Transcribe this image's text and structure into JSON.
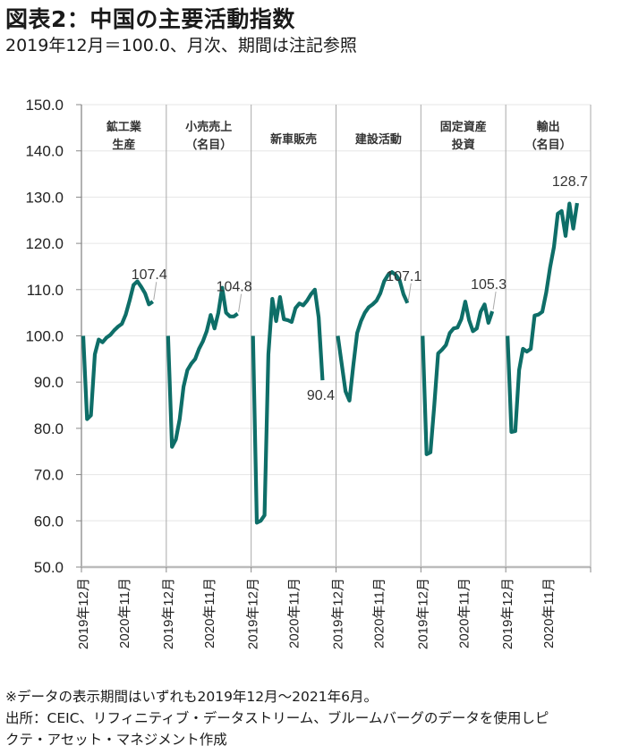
{
  "header": {
    "title": "図表2：中国の主要活動指数",
    "subtitle": "2019年12月＝100.0、月次、期間は注記参照"
  },
  "footnotes": {
    "note": "※データの表示期間はいずれも2019年12月～2021年6月。",
    "source_line1": "出所：CEIC、リフィニティブ・データストリーム、ブルームバーグのデータを使用しピ",
    "source_line2": "クテ・アセット・マネジメント作成"
  },
  "chart_data": {
    "type": "line",
    "title": "図表2：中国の主要活動指数",
    "subtitle": "2019年12月＝100.0、月次、期間は注記参照",
    "xlabel": "",
    "ylabel": "",
    "ylim": [
      50,
      150
    ],
    "yticks": [
      "50.0",
      "60.0",
      "70.0",
      "80.0",
      "90.0",
      "100.0",
      "110.0",
      "120.0",
      "130.0",
      "140.0",
      "150.0"
    ],
    "grid": true,
    "legend": "none",
    "line_color": "#0e6e68",
    "x": [
      "2019-12",
      "2020-01",
      "2020-02",
      "2020-03",
      "2020-04",
      "2020-05",
      "2020-06",
      "2020-07",
      "2020-08",
      "2020-09",
      "2020-10",
      "2020-11",
      "2020-12",
      "2021-01",
      "2021-02",
      "2021-03",
      "2021-04",
      "2021-05",
      "2021-06"
    ],
    "panels": [
      {
        "name": "鉱工業生産",
        "label_lines": [
          "鉱工業",
          "生産"
        ],
        "xtick_labels": [
          "2019年12月",
          "2020年11月"
        ],
        "values": [
          100.0,
          82.0,
          82.8,
          96.0,
          99.2,
          98.6,
          99.6,
          100.2,
          101.2,
          102.0,
          102.6,
          104.6,
          107.6,
          111.0,
          111.8,
          110.6,
          109.2,
          106.8,
          107.4
        ],
        "end_label": "107.4"
      },
      {
        "name": "小売売上（名目）",
        "label_lines": [
          "小売売上",
          "（名目）"
        ],
        "xtick_labels": [
          "2019年12月",
          "2020年11月"
        ],
        "values": [
          100.0,
          76.0,
          77.6,
          82.0,
          89.0,
          92.6,
          94.0,
          95.0,
          97.2,
          98.8,
          101.0,
          104.5,
          101.6,
          105.0,
          110.4,
          105.0,
          104.2,
          104.2,
          104.8
        ],
        "end_label": "104.8"
      },
      {
        "name": "新車販売",
        "label_lines": [
          "新車販売"
        ],
        "xtick_labels": [
          "2019年12月",
          "2020年11月"
        ],
        "values": [
          100.0,
          59.6,
          60.0,
          61.2,
          96.0,
          108.0,
          103.2,
          108.4,
          103.6,
          103.4,
          103.0,
          106.0,
          107.0,
          106.6,
          107.6,
          109.0,
          110.0,
          104.0,
          90.4
        ],
        "end_label": "90.4"
      },
      {
        "name": "建設活動",
        "label_lines": [
          "建設活動"
        ],
        "xtick_labels": [
          "2019年12月",
          "2020年11月"
        ],
        "values": [
          100.0,
          94.0,
          88.0,
          86.0,
          93.6,
          100.6,
          103.2,
          105.0,
          106.2,
          106.8,
          107.6,
          109.2,
          111.8,
          113.2,
          113.8,
          113.2,
          112.0,
          109.0,
          107.1
        ],
        "end_label": "107.1"
      },
      {
        "name": "固定資産投資",
        "label_lines": [
          "固定資産",
          "投資"
        ],
        "xtick_labels": [
          "2019年12月",
          "2020年11月"
        ],
        "values": [
          100.0,
          74.4,
          74.8,
          85.0,
          96.2,
          97.0,
          98.0,
          100.6,
          101.6,
          101.8,
          103.6,
          107.4,
          103.4,
          101.0,
          101.6,
          105.2,
          106.8,
          102.8,
          105.3
        ],
        "end_label": "105.3"
      },
      {
        "name": "輸出（名目）",
        "label_lines": [
          "輸出",
          "（名目）"
        ],
        "xtick_labels": [
          "2019年12月",
          "2020年11月"
        ],
        "values": [
          100.0,
          79.2,
          79.4,
          92.6,
          97.2,
          96.6,
          97.2,
          104.4,
          104.6,
          105.2,
          109.4,
          114.8,
          119.2,
          126.4,
          127.0,
          121.6,
          128.6,
          123.2,
          128.7
        ],
        "end_label": "128.7"
      }
    ]
  }
}
